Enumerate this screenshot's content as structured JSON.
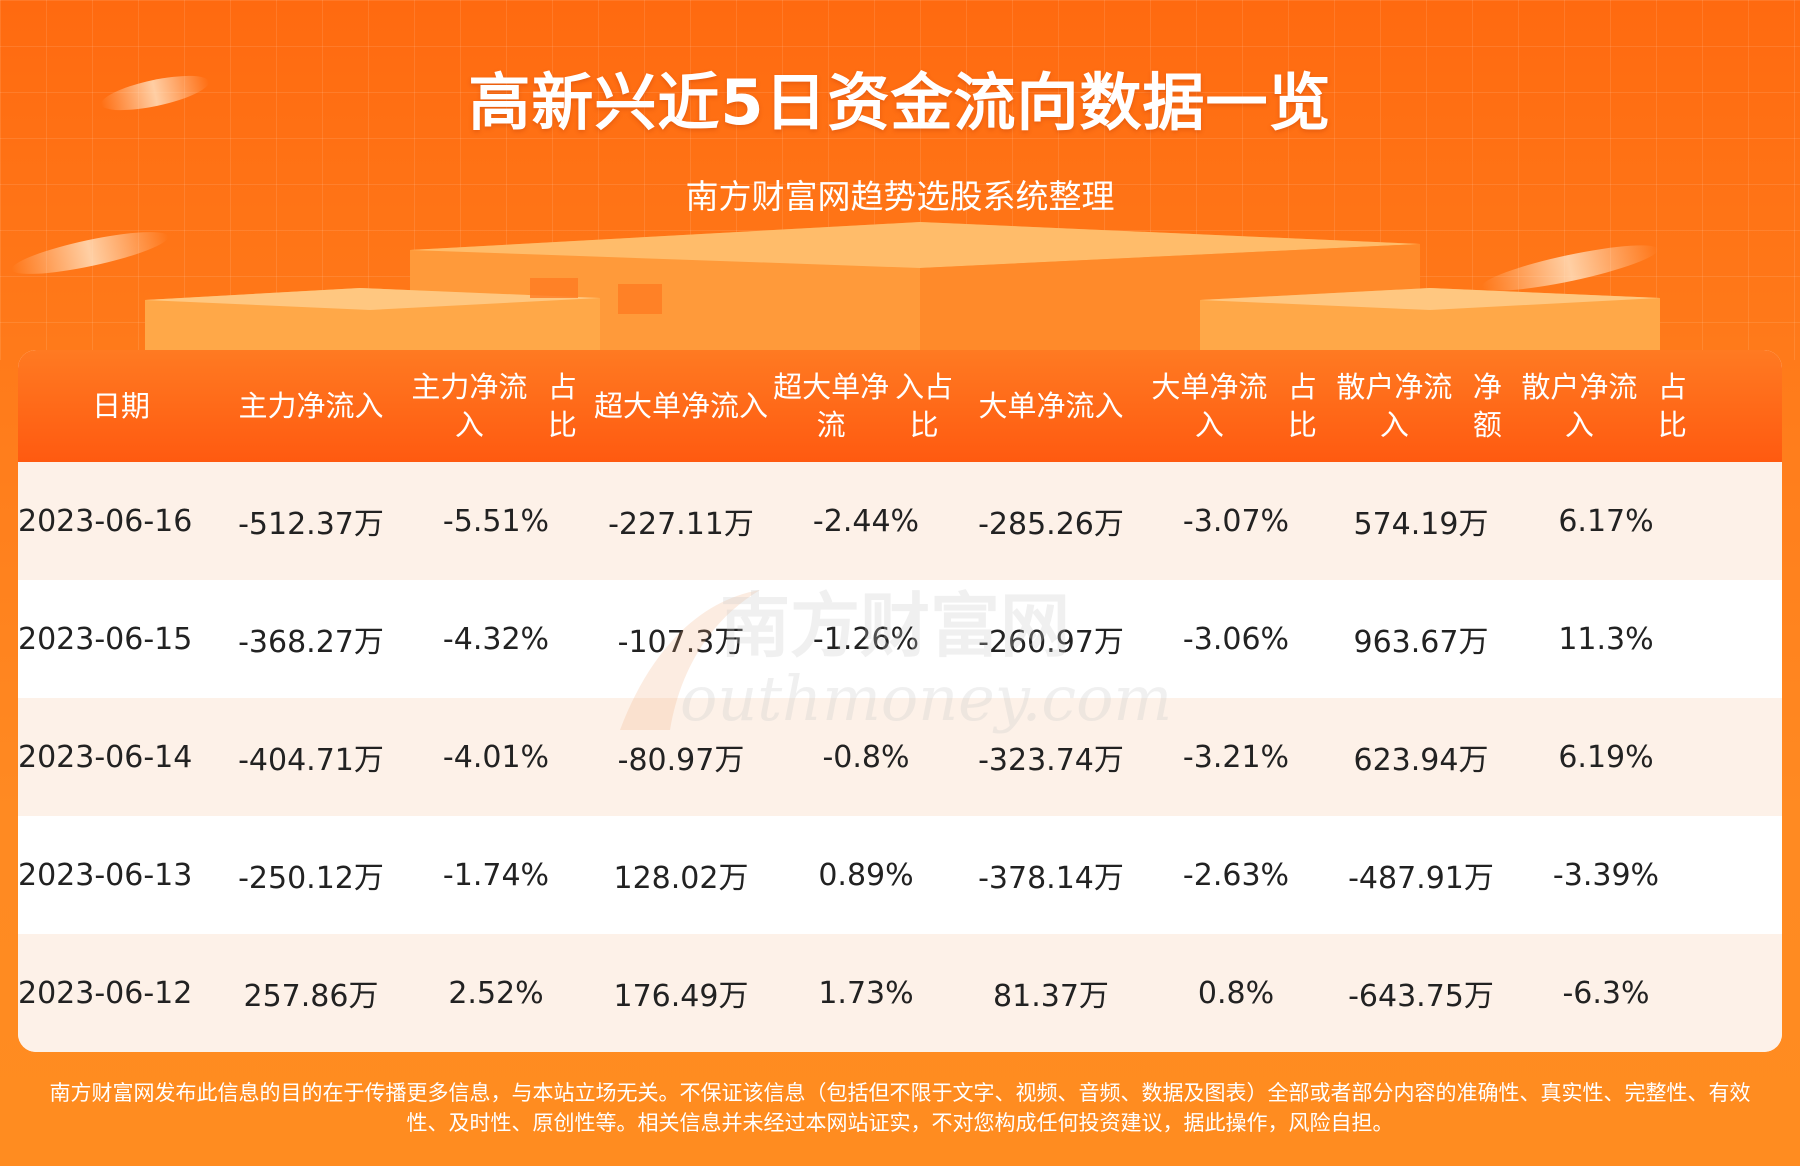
{
  "header": {
    "title": "高新兴近5日资金流向数据一览",
    "subtitle": "南方财富网趋势选股系统整理"
  },
  "table": {
    "columns": [
      [
        "日期"
      ],
      [
        "主力净流入"
      ],
      [
        "主力净流入",
        "占比"
      ],
      [
        "超大单净流",
        "入"
      ],
      [
        "超大单净流",
        "入占比"
      ],
      [
        "大单净流入"
      ],
      [
        "大单净流入",
        "占比"
      ],
      [
        "散户净流入",
        "净额"
      ],
      [
        "散户净流入",
        "占比"
      ]
    ],
    "rows": [
      [
        "2023-06-16",
        "-512.37万",
        "-5.51%",
        "-227.11万",
        "-2.44%",
        "-285.26万",
        "-3.07%",
        "574.19万",
        "6.17%"
      ],
      [
        "2023-06-15",
        "-368.27万",
        "-4.32%",
        "-107.3万",
        "-1.26%",
        "-260.97万",
        "-3.06%",
        "963.67万",
        "11.3%"
      ],
      [
        "2023-06-14",
        "-404.71万",
        "-4.01%",
        "-80.97万",
        "-0.8%",
        "-323.74万",
        "-3.21%",
        "623.94万",
        "6.19%"
      ],
      [
        "2023-06-13",
        "-250.12万",
        "-1.74%",
        "128.02万",
        "0.89%",
        "-378.14万",
        "-2.63%",
        "-487.91万",
        "-3.39%"
      ],
      [
        "2023-06-12",
        "257.86万",
        "2.52%",
        "176.49万",
        "1.73%",
        "81.37万",
        "0.8%",
        "-643.75万",
        "-6.3%"
      ]
    ]
  },
  "watermark": {
    "cn": "南方财富网",
    "en": "outhmoney.com"
  },
  "footer": {
    "line1": "南方财富网发布此信息的目的在于传播更多信息，与本站立场无关。不保证该信息（包括但不限于文字、视频、音频、数据及图表）全部或者部分内容的准确性、真实性、完整性、有效",
    "line2": "性、及时性、原创性等。相关信息并未经过本网站证实，不对您构成任何投资建议，据此操作，风险自担。"
  },
  "colors": {
    "background": "#ff7a1a",
    "header_row": "#ff5a10",
    "row_tint": "#fdf1e8"
  }
}
